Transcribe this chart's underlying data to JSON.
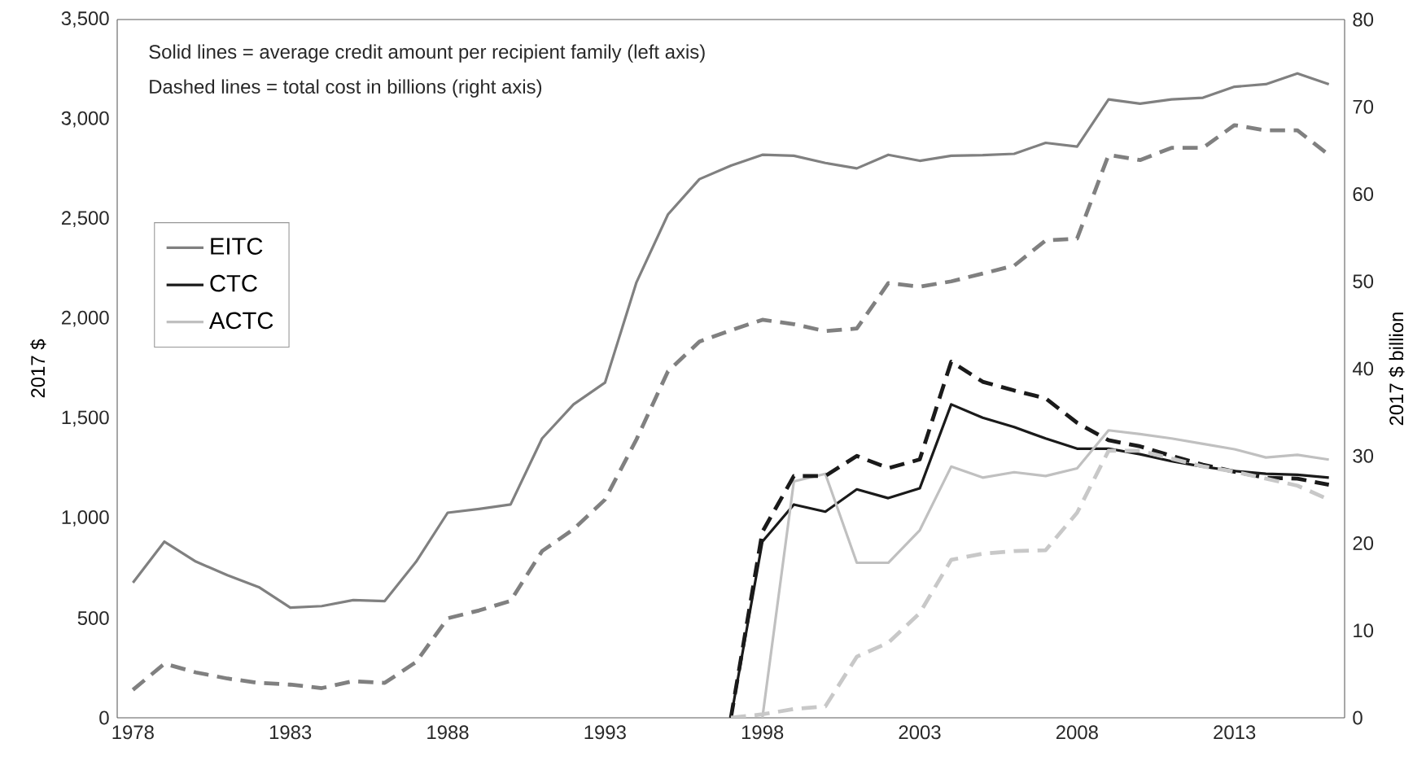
{
  "chart_data": {
    "type": "line",
    "ylabel": "2017 $",
    "y2label": "2017 $ billion",
    "annotations": [
      "Solid lines = average credit amount per recipient family (left axis)",
      "Dashed lines = total cost in billions (right axis)"
    ],
    "x": [
      1978,
      1979,
      1980,
      1981,
      1982,
      1983,
      1984,
      1985,
      1986,
      1987,
      1988,
      1989,
      1990,
      1991,
      1992,
      1993,
      1994,
      1995,
      1996,
      1997,
      1998,
      1999,
      2000,
      2001,
      2002,
      2003,
      2004,
      2005,
      2006,
      2007,
      2008,
      2009,
      2010,
      2011,
      2012,
      2013,
      2014,
      2015,
      2016
    ],
    "xlim": [
      1977.5,
      2016.5
    ],
    "xticks": [
      1978,
      1983,
      1988,
      1993,
      1998,
      2003,
      2008,
      2013
    ],
    "ylim": [
      0,
      3500
    ],
    "yticks": [
      0,
      {
        "value": 500,
        "label": "500"
      },
      {
        "value": 1000,
        "label": "1,000"
      },
      {
        "value": 1500,
        "label": "1,500"
      },
      {
        "value": 2000,
        "label": "2,000"
      },
      {
        "value": 2500,
        "label": "2,500"
      },
      {
        "value": 3000,
        "label": "3,000"
      },
      {
        "value": 3500,
        "label": "3,500"
      }
    ],
    "y2lim": [
      0,
      80
    ],
    "y2ticks": [
      0,
      10,
      20,
      30,
      40,
      50,
      60,
      70,
      80
    ],
    "legend": "left",
    "grid": false,
    "marker": "none",
    "line_style": "solid",
    "series": [
      {
        "name": "EITC",
        "color": "#808080",
        "values": [
          677,
          883,
          783,
          715,
          655,
          552,
          560,
          590,
          585,
          783,
          1028,
          1047,
          1069,
          1400,
          1571,
          1680,
          2183,
          2523,
          2700,
          2768,
          2822,
          2817,
          2781,
          2754,
          2822,
          2792,
          2817,
          2820,
          2827,
          2882,
          2863,
          3100,
          3078,
          3100,
          3108,
          3163,
          3176,
          3230,
          3176
        ]
      },
      {
        "name": "CTC",
        "color": "#1a1a1a",
        "values": [
          null,
          null,
          null,
          null,
          null,
          null,
          null,
          null,
          null,
          null,
          null,
          null,
          null,
          null,
          null,
          null,
          null,
          null,
          null,
          0,
          883,
          1069,
          1033,
          1145,
          1101,
          1150,
          1571,
          1504,
          1457,
          1400,
          1349,
          1349,
          1321,
          1286,
          1259,
          1237,
          1223,
          1218,
          1204
        ]
      },
      {
        "name": "ACTC",
        "color": "#c0c0c0",
        "values": [
          null,
          null,
          null,
          null,
          null,
          null,
          null,
          null,
          null,
          null,
          null,
          null,
          null,
          null,
          null,
          null,
          null,
          null,
          null,
          null,
          0,
          1185,
          1223,
          777,
          777,
          940,
          1259,
          1204,
          1231,
          1212,
          1250,
          1441,
          1422,
          1400,
          1373,
          1346,
          1305,
          1318,
          1294
        ]
      },
      {
        "color": "#808080",
        "axis": "y2",
        "line_style": "dashed",
        "values": [
          3.2,
          6.2,
          5.2,
          4.5,
          4.0,
          3.8,
          3.4,
          4.2,
          4.0,
          6.4,
          11.4,
          12.3,
          13.4,
          19.1,
          21.6,
          25.0,
          31.9,
          39.7,
          43.1,
          44.4,
          45.6,
          45.1,
          44.3,
          44.6,
          49.8,
          49.4,
          50.0,
          50.9,
          51.8,
          54.7,
          54.9,
          64.5,
          63.9,
          65.3,
          65.3,
          67.9,
          67.3,
          67.3,
          64.5
        ]
      },
      {
        "color": "#1a1a1a",
        "axis": "y2",
        "line_style": "dashed",
        "values": [
          null,
          null,
          null,
          null,
          null,
          null,
          null,
          null,
          null,
          null,
          null,
          null,
          null,
          null,
          null,
          null,
          null,
          null,
          null,
          0,
          21.3,
          27.7,
          27.7,
          30.0,
          28.6,
          29.6,
          40.8,
          38.5,
          37.5,
          36.6,
          33.8,
          31.8,
          31.1,
          30.0,
          29.0,
          28.2,
          27.5,
          27.4,
          26.7
        ]
      },
      {
        "color": "#c8c8c8",
        "axis": "y2",
        "line_style": "dashed",
        "values": [
          null,
          null,
          null,
          null,
          null,
          null,
          null,
          null,
          null,
          null,
          null,
          null,
          null,
          null,
          null,
          null,
          null,
          null,
          null,
          0,
          0.4,
          1.0,
          1.3,
          7.0,
          8.6,
          12.0,
          18.1,
          18.8,
          19.1,
          19.2,
          23.5,
          30.6,
          30.6,
          29.7,
          28.8,
          28.2,
          27.4,
          26.6,
          25.0
        ]
      }
    ]
  }
}
